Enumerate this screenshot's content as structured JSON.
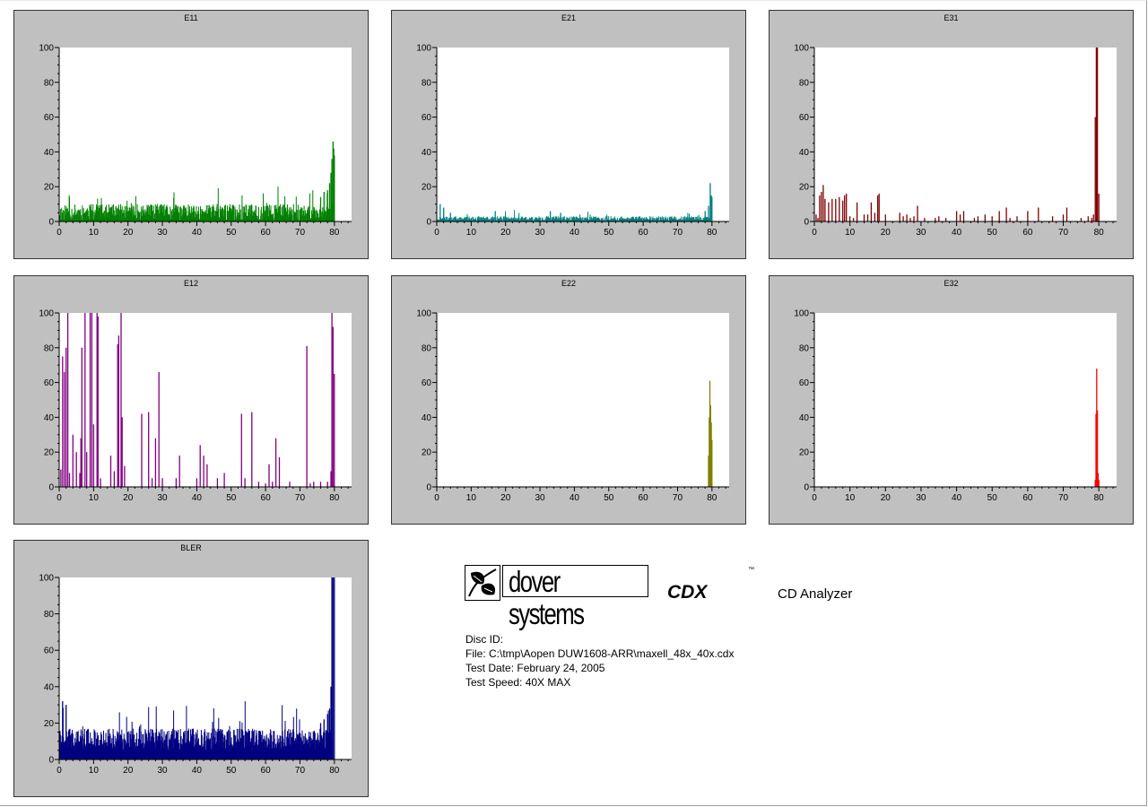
{
  "report": {
    "brand": "dover systems",
    "product": "CDX",
    "trademark": "™",
    "subtitle": "CD Analyzer",
    "disc_id": "Disc ID:",
    "file": "File: C:\\tmp\\Aopen DUW1608-ARR\\maxell_48x_40x.cdx",
    "test_date": "Test Date: February 24, 2005",
    "test_speed": "Test Speed: 40X MAX"
  },
  "chart_data": [
    {
      "id": "e11",
      "type": "bar",
      "title": "E11",
      "color": "#008000",
      "xlim": [
        0,
        85
      ],
      "ylim": [
        0,
        100
      ],
      "x_ticks": [
        0,
        10,
        20,
        30,
        40,
        50,
        60,
        70,
        80
      ],
      "y_ticks": [
        0,
        20,
        40,
        60,
        80,
        100
      ],
      "x_end": 80,
      "baseline": {
        "amplitude": 10,
        "spike_probability": 0.06,
        "spike_max": 20,
        "seed": 11
      },
      "spikes": [
        [
          76,
          14
        ],
        [
          77,
          17
        ],
        [
          78,
          18
        ],
        [
          78.6,
          22
        ],
        [
          79,
          28
        ],
        [
          79.3,
          36
        ],
        [
          79.6,
          46
        ],
        [
          79.8,
          42
        ],
        [
          80,
          38
        ]
      ]
    },
    {
      "id": "e21",
      "type": "bar",
      "title": "E21",
      "color": "#008080",
      "xlim": [
        0,
        85
      ],
      "ylim": [
        0,
        100
      ],
      "x_ticks": [
        0,
        10,
        20,
        30,
        40,
        50,
        60,
        70,
        80
      ],
      "y_ticks": [
        0,
        20,
        40,
        60,
        80,
        100
      ],
      "x_end": 80,
      "baseline": {
        "amplitude": 3,
        "spike_probability": 0.03,
        "spike_max": 7,
        "seed": 21
      },
      "spikes": [
        [
          1,
          10
        ],
        [
          2,
          8
        ],
        [
          4,
          5
        ],
        [
          17,
          6
        ],
        [
          33,
          6
        ],
        [
          36,
          5
        ],
        [
          78,
          6
        ],
        [
          79,
          9
        ],
        [
          79.5,
          22
        ],
        [
          79.8,
          15
        ],
        [
          80,
          14
        ]
      ]
    },
    {
      "id": "e31",
      "type": "bar",
      "title": "E31",
      "color": "#800000",
      "xlim": [
        0,
        85
      ],
      "ylim": [
        0,
        100
      ],
      "x_ticks": [
        0,
        10,
        20,
        30,
        40,
        50,
        60,
        70,
        80
      ],
      "y_ticks": [
        0,
        20,
        40,
        60,
        80,
        100
      ],
      "x_end": 80,
      "baseline": {
        "amplitude": 0,
        "spike_probability": 0,
        "spike_max": 0,
        "seed": 31
      },
      "spikes": [
        [
          0.5,
          4
        ],
        [
          1,
          2
        ],
        [
          1.5,
          15
        ],
        [
          2,
          17
        ],
        [
          2.5,
          21
        ],
        [
          3,
          13
        ],
        [
          4,
          11
        ],
        [
          5,
          13
        ],
        [
          6,
          13
        ],
        [
          7,
          14
        ],
        [
          8,
          12
        ],
        [
          8.5,
          15
        ],
        [
          9,
          16
        ],
        [
          10,
          3
        ],
        [
          11,
          2
        ],
        [
          12,
          11
        ],
        [
          14,
          4
        ],
        [
          15,
          4
        ],
        [
          16,
          11
        ],
        [
          17,
          5
        ],
        [
          17.8,
          15
        ],
        [
          18.2,
          16
        ],
        [
          20,
          4
        ],
        [
          24,
          5
        ],
        [
          25,
          3
        ],
        [
          26,
          4
        ],
        [
          27,
          2
        ],
        [
          28,
          3
        ],
        [
          29,
          9
        ],
        [
          31,
          2
        ],
        [
          34,
          2
        ],
        [
          35,
          3
        ],
        [
          37,
          2
        ],
        [
          40,
          6
        ],
        [
          41,
          4
        ],
        [
          42,
          6
        ],
        [
          45,
          2
        ],
        [
          46,
          3
        ],
        [
          48,
          4
        ],
        [
          50,
          3
        ],
        [
          52,
          6
        ],
        [
          54,
          8
        ],
        [
          55,
          2
        ],
        [
          57,
          3
        ],
        [
          60,
          6
        ],
        [
          63,
          8
        ],
        [
          67,
          3
        ],
        [
          70,
          4
        ],
        [
          71,
          8
        ],
        [
          75,
          2
        ],
        [
          77,
          3
        ],
        [
          78,
          2
        ],
        [
          78.5,
          4
        ],
        [
          79,
          60
        ],
        [
          79.3,
          100
        ],
        [
          79.6,
          100
        ],
        [
          80,
          16
        ]
      ]
    },
    {
      "id": "e12",
      "type": "bar",
      "title": "E12",
      "color": "#800080",
      "xlim": [
        0,
        85
      ],
      "ylim": [
        0,
        100
      ],
      "x_ticks": [
        0,
        10,
        20,
        30,
        40,
        50,
        60,
        70,
        80
      ],
      "y_ticks": [
        0,
        20,
        40,
        60,
        80,
        100
      ],
      "x_end": 80,
      "baseline": {
        "amplitude": 0,
        "spike_probability": 0,
        "spike_max": 0,
        "seed": 12
      },
      "spikes": [
        [
          0.5,
          10
        ],
        [
          1,
          75
        ],
        [
          1.5,
          66
        ],
        [
          2,
          80
        ],
        [
          2.5,
          100
        ],
        [
          3,
          8
        ],
        [
          4,
          30
        ],
        [
          5,
          20
        ],
        [
          6,
          8
        ],
        [
          6.3,
          28
        ],
        [
          6.6,
          80
        ],
        [
          7.5,
          100
        ],
        [
          8,
          20
        ],
        [
          9,
          100
        ],
        [
          9.5,
          100
        ],
        [
          10,
          36
        ],
        [
          11,
          100
        ],
        [
          11.3,
          98
        ],
        [
          12,
          5
        ],
        [
          15,
          18
        ],
        [
          16,
          9
        ],
        [
          17,
          82
        ],
        [
          17.3,
          87
        ],
        [
          18,
          100
        ],
        [
          18.3,
          40
        ],
        [
          19,
          12
        ],
        [
          24,
          42
        ],
        [
          26,
          43
        ],
        [
          27,
          5
        ],
        [
          28,
          28
        ],
        [
          29,
          66
        ],
        [
          30,
          5
        ],
        [
          34,
          5
        ],
        [
          35,
          18
        ],
        [
          40,
          5
        ],
        [
          41,
          24
        ],
        [
          42,
          18
        ],
        [
          43,
          13
        ],
        [
          46,
          5
        ],
        [
          48,
          8
        ],
        [
          53,
          42
        ],
        [
          54,
          5
        ],
        [
          56,
          43
        ],
        [
          58,
          3
        ],
        [
          60,
          2
        ],
        [
          61,
          13
        ],
        [
          62,
          3
        ],
        [
          63,
          28
        ],
        [
          64,
          17
        ],
        [
          67,
          3
        ],
        [
          72,
          81
        ],
        [
          73,
          2
        ],
        [
          74,
          3
        ],
        [
          76,
          3
        ],
        [
          78,
          3
        ],
        [
          79,
          9
        ],
        [
          79.3,
          100
        ],
        [
          79.6,
          92
        ],
        [
          80,
          65
        ]
      ]
    },
    {
      "id": "e22",
      "type": "bar",
      "title": "E22",
      "color": "#808000",
      "xlim": [
        0,
        85
      ],
      "ylim": [
        0,
        100
      ],
      "x_ticks": [
        0,
        10,
        20,
        30,
        40,
        50,
        60,
        70,
        80
      ],
      "y_ticks": [
        0,
        20,
        40,
        60,
        80,
        100
      ],
      "x_end": 80,
      "baseline": {
        "amplitude": 0,
        "spike_probability": 0,
        "spike_max": 0,
        "seed": 22
      },
      "spikes": [
        [
          79,
          18
        ],
        [
          79.2,
          40
        ],
        [
          79.4,
          61
        ],
        [
          79.6,
          47
        ],
        [
          79.8,
          37
        ],
        [
          80,
          27
        ]
      ]
    },
    {
      "id": "e32",
      "type": "bar",
      "title": "E32",
      "color": "#ff0000",
      "xlim": [
        0,
        85
      ],
      "ylim": [
        0,
        100
      ],
      "x_ticks": [
        0,
        10,
        20,
        30,
        40,
        50,
        60,
        70,
        80
      ],
      "y_ticks": [
        0,
        20,
        40,
        60,
        80,
        100
      ],
      "x_end": 80,
      "baseline": {
        "amplitude": 0,
        "spike_probability": 0,
        "spike_max": 0,
        "seed": 32
      },
      "spikes": [
        [
          79,
          4
        ],
        [
          79.2,
          42
        ],
        [
          79.4,
          68
        ],
        [
          79.6,
          44
        ],
        [
          79.8,
          8
        ],
        [
          80,
          4
        ]
      ]
    },
    {
      "id": "bler",
      "type": "bar",
      "title": "BLER",
      "color": "#000080",
      "xlim": [
        0,
        85
      ],
      "ylim": [
        0,
        100
      ],
      "x_ticks": [
        0,
        10,
        20,
        30,
        40,
        50,
        60,
        70,
        80
      ],
      "y_ticks": [
        0,
        20,
        40,
        60,
        80,
        100
      ],
      "x_end": 80,
      "baseline": {
        "amplitude": 12,
        "spike_probability": 0.08,
        "spike_max": 27,
        "seed": 41,
        "floor": 5
      },
      "spikes": [
        [
          1,
          32
        ],
        [
          2,
          30
        ],
        [
          76,
          20
        ],
        [
          77,
          22
        ],
        [
          78,
          25
        ],
        [
          78.6,
          28
        ],
        [
          79,
          40
        ],
        [
          79.3,
          100
        ],
        [
          79.6,
          100
        ],
        [
          80,
          100
        ]
      ]
    }
  ]
}
